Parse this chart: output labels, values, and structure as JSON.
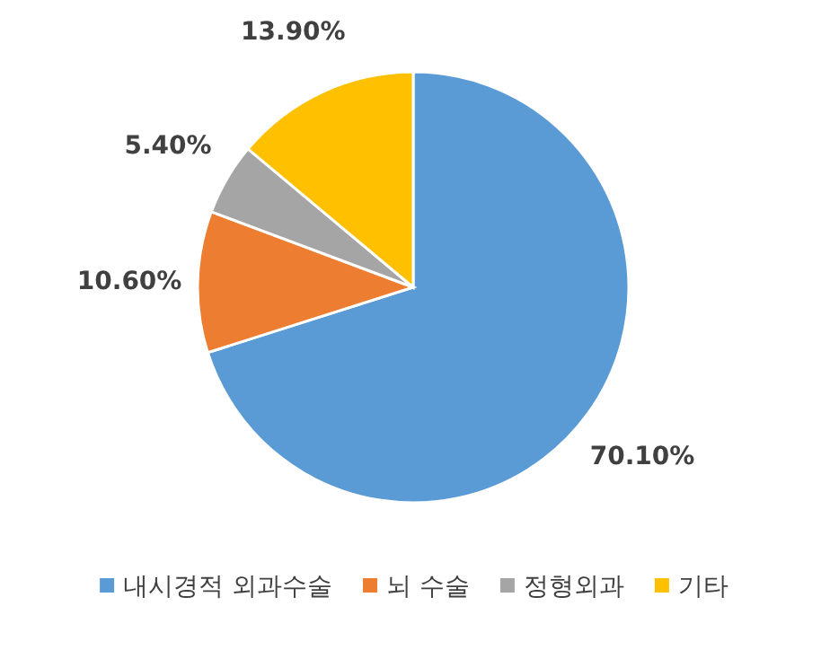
{
  "chart_data": {
    "type": "pie",
    "categories": [
      "내시경적 외과수술",
      "뇌 수술",
      "정형외과",
      "기타"
    ],
    "values": [
      70.1,
      10.6,
      5.4,
      13.9
    ],
    "colors": [
      "#5b9bd5",
      "#ed7d31",
      "#a5a5a5",
      "#ffc000"
    ],
    "value_labels": [
      "70.10%",
      "10.60%",
      "5.40%",
      "13.90%"
    ],
    "legend": "bottom"
  }
}
